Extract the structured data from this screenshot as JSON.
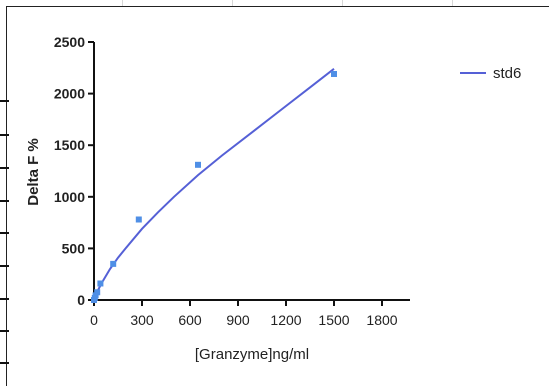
{
  "chart_data": {
    "type": "line",
    "xlabel": "[Granzyme]ng/ml",
    "ylabel": "Delta F %",
    "xlim": [
      0,
      1800
    ],
    "ylim": [
      0,
      2500
    ],
    "x_ticks": [
      0,
      300,
      600,
      900,
      1200,
      1500,
      1800
    ],
    "y_ticks": [
      0,
      500,
      1000,
      1500,
      2000,
      2500
    ],
    "grid": false,
    "legend_position": "top-right",
    "series": [
      {
        "name": "std6",
        "color": "#5560d6",
        "marker_color": "#4f8fe6",
        "points": [
          {
            "x": 0,
            "y": 0
          },
          {
            "x": 5,
            "y": 20
          },
          {
            "x": 10,
            "y": 45
          },
          {
            "x": 20,
            "y": 75
          },
          {
            "x": 40,
            "y": 160
          },
          {
            "x": 120,
            "y": 350
          },
          {
            "x": 280,
            "y": 780
          },
          {
            "x": 650,
            "y": 1310
          },
          {
            "x": 1500,
            "y": 2190
          }
        ],
        "fit_curve": [
          {
            "x": 0,
            "y": 0
          },
          {
            "x": 10,
            "y": 40
          },
          {
            "x": 25,
            "y": 95
          },
          {
            "x": 50,
            "y": 170
          },
          {
            "x": 100,
            "y": 300
          },
          {
            "x": 150,
            "y": 410
          },
          {
            "x": 200,
            "y": 505
          },
          {
            "x": 300,
            "y": 690
          },
          {
            "x": 400,
            "y": 850
          },
          {
            "x": 500,
            "y": 1000
          },
          {
            "x": 650,
            "y": 1210
          },
          {
            "x": 800,
            "y": 1400
          },
          {
            "x": 1000,
            "y": 1640
          },
          {
            "x": 1200,
            "y": 1880
          },
          {
            "x": 1350,
            "y": 2060
          },
          {
            "x": 1500,
            "y": 2240
          }
        ]
      }
    ]
  }
}
